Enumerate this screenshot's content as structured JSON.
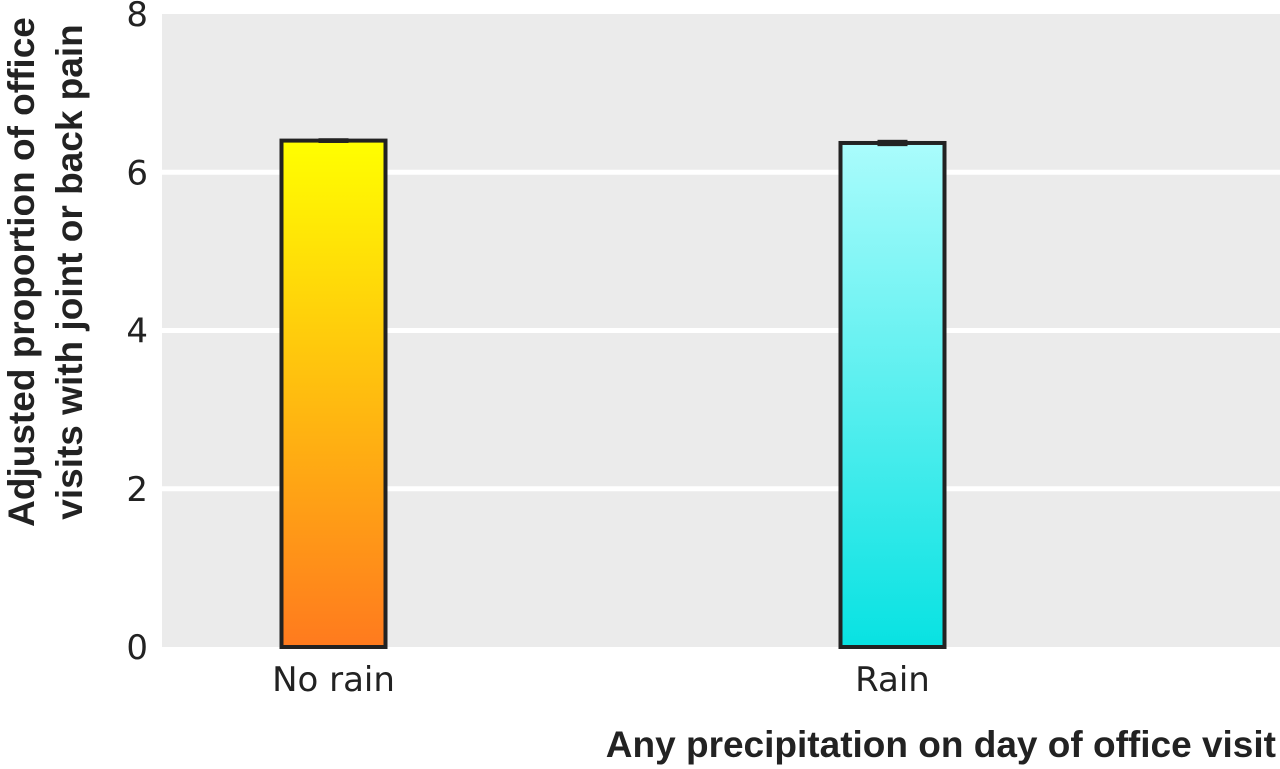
{
  "chart_data": {
    "type": "bar",
    "categories": [
      "No rain",
      "Rain"
    ],
    "values": [
      6.4,
      6.37
    ],
    "error_bars": [
      [
        6.37,
        6.43
      ],
      [
        6.33,
        6.41
      ]
    ],
    "xlabel": "Any precipitation on day of office visit",
    "ylabel_lines": [
      "Adjusted proportion of office",
      "visits with joint or back pain"
    ],
    "ylim": [
      0,
      8
    ],
    "yticks": [
      0,
      2,
      4,
      6,
      8
    ],
    "grid": true,
    "legend": "none",
    "colors": {
      "background": "#ebebeb",
      "grid": "#ffffff",
      "bar_outline": "#222222",
      "no_rain_gradient": [
        "#ff7a1e",
        "#ffff00"
      ],
      "rain_gradient": [
        "#08e2e2",
        "#aafcfc"
      ]
    }
  }
}
